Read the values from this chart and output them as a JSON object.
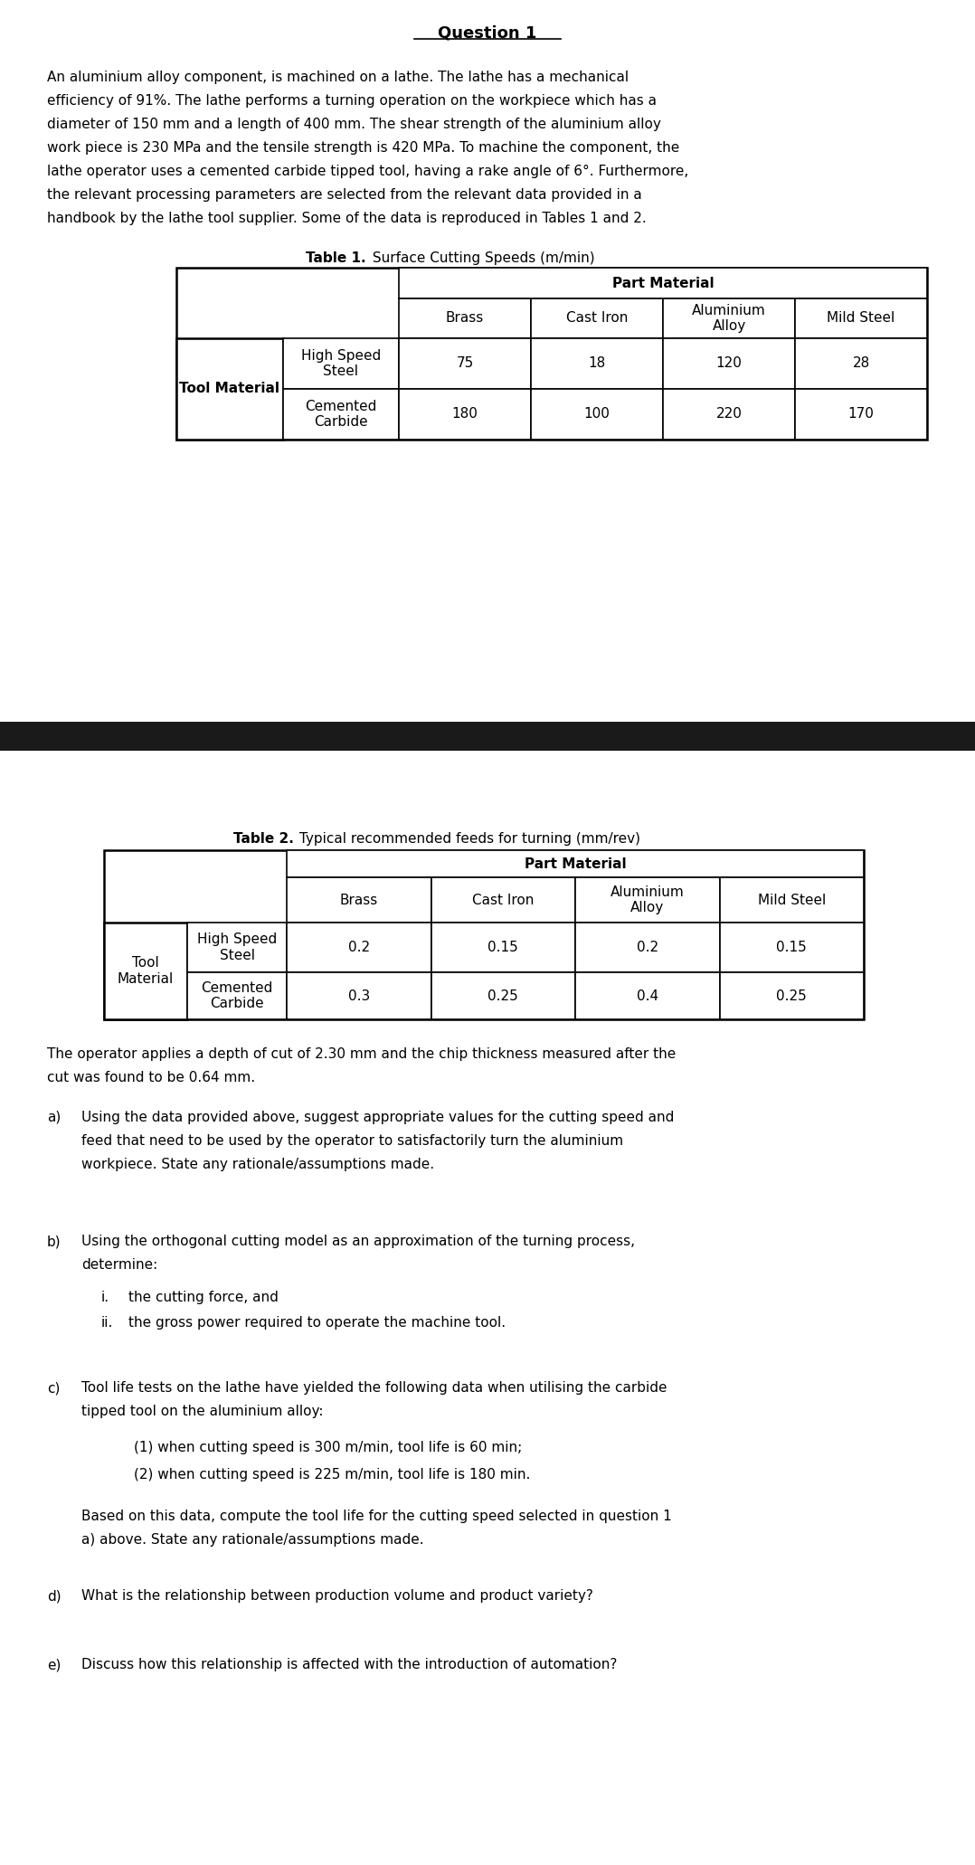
{
  "title": "Question 1",
  "intro_lines": [
    "An aluminium alloy component, is machined on a lathe. The lathe has a mechanical",
    "efficiency of 91%. The lathe performs a turning operation on the workpiece which has a",
    "diameter of 150 mm and a length of 400 mm. The shear strength of the aluminium alloy",
    "work piece is 230 MPa and the tensile strength is 420 MPa. To machine the component, the",
    "lathe operator uses a cemented carbide tipped tool, having a rake angle of 6°. Furthermore,",
    "the relevant processing parameters are selected from the relevant data provided in a",
    "handbook by the lathe tool supplier. Some of the data is reproduced in Tables 1 and 2."
  ],
  "table1_title_bold": "Table 1.",
  "table1_title_normal": " Surface Cutting Speeds (m/min)",
  "table1_cols": [
    "Brass",
    "Cast Iron",
    "Aluminium\nAlloy",
    "Mild Steel"
  ],
  "table1_row_labels": [
    "High Speed\nSteel",
    "Cemented\nCarbide"
  ],
  "table1_data": [
    [
      75,
      18,
      120,
      28
    ],
    [
      180,
      100,
      220,
      170
    ]
  ],
  "table2_title_bold": "Table 2.",
  "table2_title_normal": " Typical recommended feeds for turning (mm/rev)",
  "table2_cols": [
    "Brass",
    "Cast Iron",
    "Aluminium\nAlloy",
    "Mild Steel"
  ],
  "table2_row_labels": [
    "High Speed\nSteel",
    "Cemented\nCarbide"
  ],
  "table2_data": [
    [
      0.2,
      0.15,
      0.2,
      0.15
    ],
    [
      0.3,
      0.25,
      0.4,
      0.25
    ]
  ],
  "para_depth_lines": [
    "The operator applies a depth of cut of 2.30 mm and the chip thickness measured after the",
    "cut was found to be 0.64 mm."
  ],
  "qa_lines": [
    "Using the data provided above, suggest appropriate values for the cutting speed and",
    "feed that need to be used by the operator to satisfactorily turn the aluminium",
    "workpiece. State any rationale/assumptions made."
  ],
  "qb_lines": [
    "Using the orthogonal cutting model as an approximation of the turning process,",
    "determine:"
  ],
  "qb_i": "the cutting force, and",
  "qb_ii": "the gross power required to operate the machine tool.",
  "qc_lines": [
    "Tool life tests on the lathe have yielded the following data when utilising the carbide",
    "tipped tool on the aluminium alloy:"
  ],
  "qc_1": "(1) when cutting speed is 300 m/min, tool life is 60 min;",
  "qc_2": "(2) when cutting speed is 225 m/min, tool life is 180 min.",
  "qc_end_lines": [
    "Based on this data, compute the tool life for the cutting speed selected in question 1",
    "a) above. State any rationale/assumptions made."
  ],
  "qd": "What is the relationship between production volume and product variety?",
  "qe": "Discuss how this relationship is affected with the introduction of automation?",
  "bg_color": "#ffffff",
  "text_color": "#000000",
  "bar_color": "#1a1a1a"
}
